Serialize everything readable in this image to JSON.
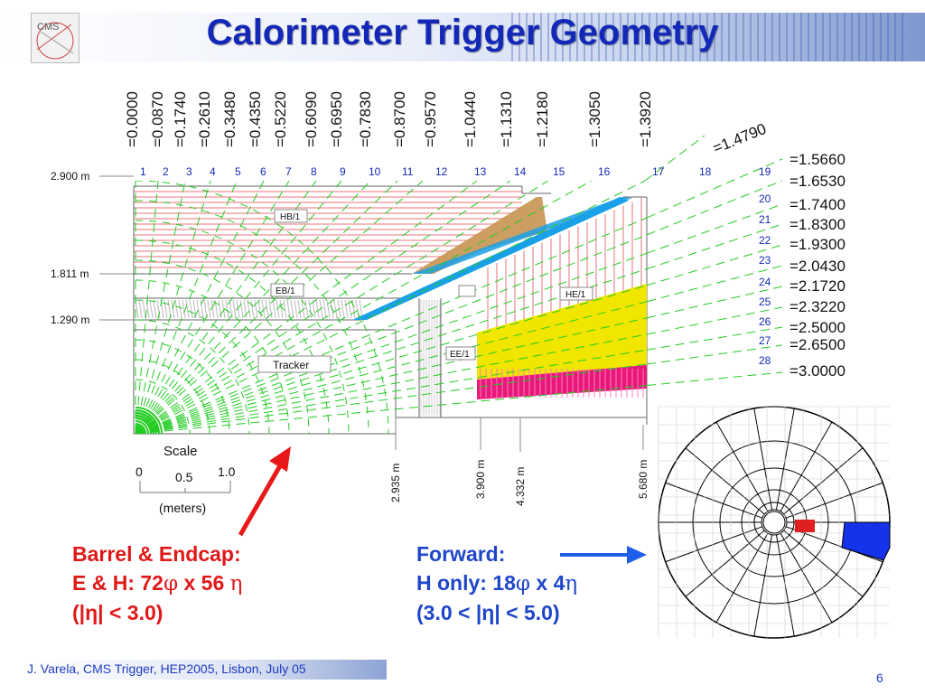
{
  "title": "Calorimeter Trigger Geometry",
  "eta_top": [
    "=0.0000",
    "=0.0870",
    "=0.1740",
    "=0.2610",
    "=0.3480",
    "=0.4350",
    "=0.5220",
    "=0.6090",
    "=0.6950",
    "=0.7830",
    "=0.8700",
    "=0.9570",
    "=1.0440",
    "=1.1310",
    "=1.2180",
    "=1.3050",
    "=1.3920"
  ],
  "eta_diag": "=1.4790",
  "eta_right": [
    "=1.5660",
    "=1.6530",
    "=1.7400",
    "=1.8300",
    "=1.9300",
    "=2.0430",
    "=2.1720",
    "=2.3220",
    "=2.5000",
    "=2.6500",
    "=3.0000"
  ],
  "tower_top": [
    "1",
    "2",
    "3",
    "4",
    "5",
    "6",
    "7",
    "8",
    "9",
    "10",
    "11",
    "12",
    "13",
    "14",
    "15",
    "16",
    "17",
    "18",
    "19"
  ],
  "tower_right": [
    "20",
    "21",
    "22",
    "23",
    "24",
    "25",
    "26",
    "27",
    "28"
  ],
  "radii": [
    "2.900 m",
    "1.811 m",
    "1.290 m"
  ],
  "z_positions": [
    "2.935 m",
    "3.900 m",
    "4.332 m",
    "5.680 m"
  ],
  "box_labels": {
    "hb": "HB/1",
    "eb": "EB/1",
    "he": "HE/1",
    "ee": "EE/1",
    "tracker": "Tracker"
  },
  "scale": {
    "title": "Scale",
    "zero": "0",
    "half": "0.5",
    "one": "1.0",
    "units": "(meters)"
  },
  "barrel_note": {
    "line1": "Barrel & Endcap:",
    "line2_a": "E & H: 72",
    "line2_phi": "φ",
    "line2_b": " x 56 ",
    "line2_eta": "η",
    "line3": "(|η| < 3.0)"
  },
  "forward_note": {
    "line1": "Forward:",
    "line2_a": "H only: 18",
    "line2_phi": "φ",
    "line2_b": " x 4",
    "line2_eta": "η",
    "line3": "(3.0 < |η| < 5.0)"
  },
  "footer": "J. Varela, CMS Trigger, HEP2005, Lisbon, July 05",
  "page_number": "6",
  "colors": {
    "title": "#1428b8",
    "hb_lines": "#e8737a",
    "ecal_crack": "#1aa0e8",
    "he_yellow": "#f0e600",
    "he_magenta": "#e8187a",
    "brown_wedge": "#c89450",
    "projective_lines": "#22cc22",
    "barrel_note": "#e01818",
    "forward_note": "#1e46c8"
  }
}
